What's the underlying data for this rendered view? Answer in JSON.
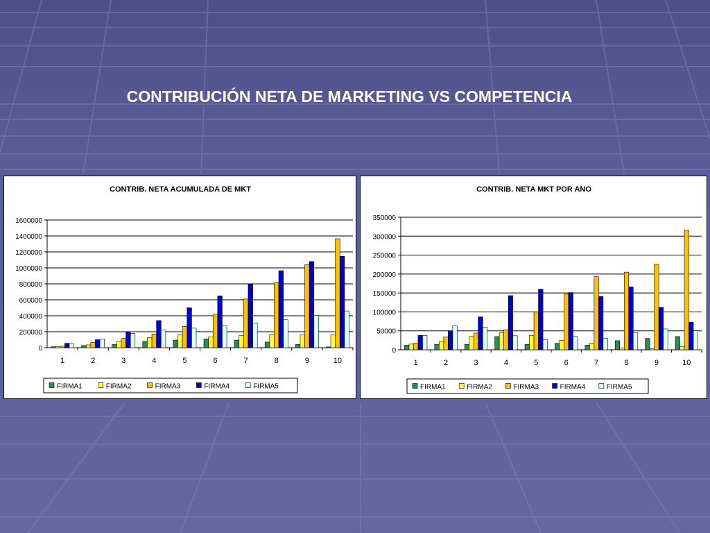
{
  "slide": {
    "title": "CONTRIBUCIÓN NETA DE MARKETING VS COMPETENCIA"
  },
  "colors": {
    "FIRMA1": "#2e8b57",
    "FIRMA2": "#ffff33",
    "FIRMA3": "#ffc000",
    "FIRMA4": "#0000cc",
    "FIRMA5": "#ddffff"
  },
  "chart_data": [
    {
      "type": "bar",
      "title": "CONTRIB. NETA ACUMULADA DE MKT",
      "xlabel": "",
      "ylabel": "",
      "ylim": [
        0,
        1600000
      ],
      "yticks": [
        0,
        200000,
        400000,
        600000,
        800000,
        1000000,
        1200000,
        1400000,
        1600000
      ],
      "ytick_labels": [
        "0",
        "200000",
        "400000",
        "600000",
        "800000",
        "1000000",
        "1200000",
        "1400000",
        "1600000"
      ],
      "grid": true,
      "legend": "bottom",
      "categories": [
        "1",
        "2",
        "3",
        "4",
        "5",
        "6",
        "7",
        "8",
        "9",
        "10"
      ],
      "series": [
        {
          "name": "FIRMA1",
          "values": [
            12000,
            27000,
            40000,
            80000,
            95000,
            110000,
            95000,
            70000,
            40000,
            10000
          ]
        },
        {
          "name": "FIRMA2",
          "values": [
            15000,
            35000,
            80000,
            125000,
            160000,
            135000,
            155000,
            165000,
            160000,
            160000
          ]
        },
        {
          "name": "FIRMA3",
          "values": [
            18000,
            65000,
            115000,
            170000,
            265000,
            420000,
            610000,
            815000,
            1040000,
            1365000
          ]
        },
        {
          "name": "FIRMA4",
          "values": [
            55000,
            100000,
            195000,
            340000,
            500000,
            650000,
            800000,
            965000,
            1080000,
            1145000
          ]
        },
        {
          "name": "FIRMA5",
          "values": [
            50000,
            110000,
            180000,
            220000,
            245000,
            275000,
            310000,
            350000,
            405000,
            460000
          ]
        }
      ]
    },
    {
      "type": "bar",
      "title": "CONTRIB. NETA MKT POR ANO",
      "xlabel": "",
      "ylabel": "",
      "ylim": [
        0,
        350000
      ],
      "yticks": [
        0,
        50000,
        100000,
        150000,
        200000,
        250000,
        300000,
        350000
      ],
      "ytick_labels": [
        "0",
        "50000",
        "100000",
        "150000",
        "200000",
        "250000",
        "300000",
        "350000"
      ],
      "grid": true,
      "legend": "bottom",
      "categories": [
        "1",
        "2",
        "3",
        "4",
        "5",
        "6",
        "7",
        "8",
        "9",
        "10"
      ],
      "series": [
        {
          "name": "FIRMA1",
          "values": [
            12000,
            14000,
            14000,
            35000,
            14000,
            17000,
            12000,
            24000,
            30000,
            35000
          ]
        },
        {
          "name": "FIRMA2",
          "values": [
            15000,
            22000,
            35000,
            45000,
            38000,
            25000,
            17000,
            5000,
            3000,
            8000
          ]
        },
        {
          "name": "FIRMA3",
          "values": [
            17000,
            34000,
            44000,
            53000,
            100000,
            147000,
            193000,
            205000,
            226000,
            316000
          ]
        },
        {
          "name": "FIRMA4",
          "values": [
            38000,
            50000,
            87000,
            143000,
            160000,
            151000,
            141000,
            166000,
            112000,
            73000
          ]
        },
        {
          "name": "FIRMA5",
          "values": [
            38000,
            63000,
            60000,
            37000,
            27000,
            35000,
            30000,
            45000,
            55000,
            50000
          ]
        }
      ]
    }
  ]
}
